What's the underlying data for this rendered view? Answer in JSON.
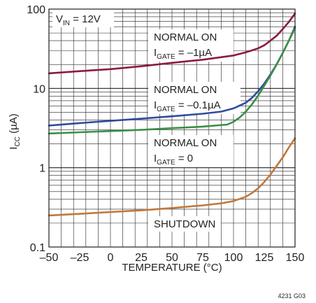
{
  "chart_data": {
    "type": "line",
    "xlabel": "TEMPERATURE (°C)",
    "ylabel": {
      "main": "I",
      "sub": "CC",
      "unit": " (µA)"
    },
    "xlim": [
      -50,
      150
    ],
    "ylim": [
      0.1,
      100
    ],
    "yscale": "log",
    "grid": true,
    "x_ticks": [
      -50,
      -25,
      0,
      25,
      50,
      75,
      100,
      125,
      150
    ],
    "x_tick_labels": [
      "–50",
      "–25",
      "0",
      "25",
      "50",
      "75",
      "100",
      "125",
      "150"
    ],
    "y_ticks": [
      0.1,
      1,
      10,
      100
    ],
    "y_tick_labels": [
      "0.1",
      "1",
      "10",
      "100"
    ],
    "condition": {
      "main": "V",
      "sub": "IN",
      "rest": " = 12V"
    },
    "series": [
      {
        "color": "#8c1a3c",
        "label": {
          "line1": "NORMAL ON",
          "main": "I",
          "sub": "GATE",
          "rest": " = –1µA"
        },
        "x": [
          -50,
          -25,
          0,
          25,
          50,
          75,
          100,
          110,
          120,
          125,
          130,
          135,
          140,
          145,
          150
        ],
        "y": [
          15.5,
          16.5,
          17.5,
          19,
          21,
          23,
          26,
          28.5,
          32,
          35,
          40,
          46,
          56,
          69,
          88
        ]
      },
      {
        "color": "#2e4d9e",
        "label": {
          "line1": "NORMAL ON",
          "main": "I",
          "sub": "GATE",
          "rest": " = –0.1µA"
        },
        "x": [
          -50,
          -25,
          0,
          25,
          50,
          75,
          90,
          100,
          110,
          115,
          120,
          125,
          130,
          135,
          140,
          145,
          150
        ],
        "y": [
          3.4,
          3.65,
          3.9,
          4.15,
          4.45,
          4.8,
          5.1,
          5.6,
          6.6,
          7.6,
          9.2,
          11.5,
          15,
          20,
          28,
          40,
          60
        ]
      },
      {
        "color": "#3a8f47",
        "label": {
          "line1": "NORMAL ON",
          "main": "I",
          "sub": "GATE",
          "rest": " = 0"
        },
        "x": [
          -50,
          -25,
          0,
          25,
          50,
          75,
          95,
          100,
          105,
          110,
          115,
          120,
          125,
          130,
          135,
          140,
          145,
          150
        ],
        "y": [
          2.7,
          2.8,
          2.9,
          3.0,
          3.15,
          3.3,
          3.5,
          3.8,
          4.3,
          5.1,
          6.3,
          8.1,
          10.8,
          14.5,
          20,
          28,
          40,
          58
        ]
      },
      {
        "color": "#c0783a",
        "label": {
          "line1": "SHUTDOWN"
        },
        "x": [
          -50,
          -25,
          0,
          25,
          50,
          75,
          90,
          100,
          110,
          115,
          120,
          125,
          130,
          135,
          140,
          145,
          150
        ],
        "y": [
          0.25,
          0.262,
          0.276,
          0.29,
          0.31,
          0.335,
          0.355,
          0.38,
          0.43,
          0.48,
          0.55,
          0.66,
          0.82,
          1.05,
          1.35,
          1.8,
          2.35
        ]
      }
    ],
    "figure_code": "4231 G03"
  }
}
